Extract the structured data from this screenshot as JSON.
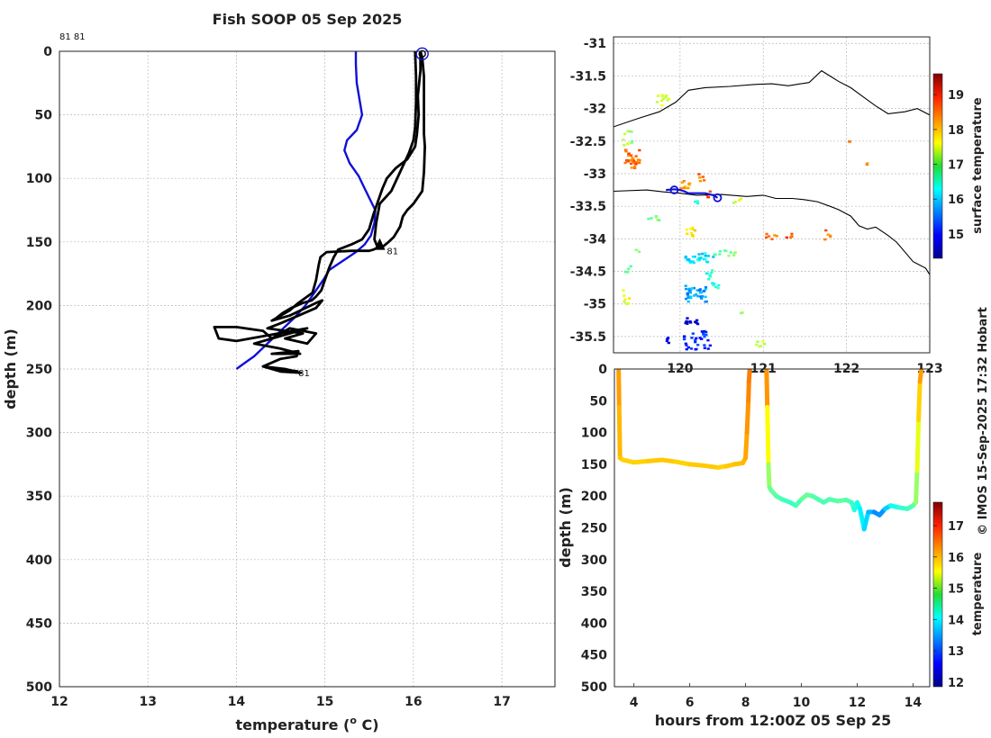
{
  "title": "Fish SOOP 05 Sep 2025",
  "credit": "© IMOS 15-Sep-2025 17:32 Hobart",
  "chart_data": [
    {
      "type": "line",
      "panel": "profile",
      "xlabel": "temperature (o C)",
      "xlabel_parts": {
        "pre": "temperature (",
        "sup": "o",
        "post": " C)"
      },
      "ylabel": "depth (m)",
      "xlim": [
        12,
        17.6
      ],
      "ylim": [
        500,
        0
      ],
      "xticks": [
        12,
        13,
        14,
        15,
        16,
        17
      ],
      "yticks": [
        0,
        50,
        100,
        150,
        200,
        250,
        300,
        350,
        400,
        450,
        500
      ],
      "grid": true,
      "annotations": [
        {
          "text": "81 81",
          "t": 12.0,
          "d": -12
        },
        {
          "text": "81",
          "t": 15.7,
          "d": 157
        },
        {
          "text": "81",
          "t": 14.7,
          "d": 253
        }
      ],
      "series": [
        {
          "color": "#1010d8",
          "x": [
            15.35,
            15.35,
            15.36,
            15.42,
            15.36,
            15.25,
            15.22,
            15.28,
            15.38,
            15.45,
            15.52,
            15.57,
            15.56,
            15.52,
            15.45,
            15.35,
            15.2,
            15.05,
            14.98,
            14.88,
            14.78,
            14.65,
            14.5,
            14.35,
            14.2,
            14.1,
            14.0
          ],
          "y": [
            0,
            10,
            25,
            50,
            62,
            70,
            78,
            88,
            98,
            108,
            118,
            125,
            135,
            145,
            152,
            158,
            165,
            172,
            180,
            190,
            200,
            210,
            220,
            230,
            240,
            245,
            250
          ]
        },
        {
          "color": "#000000",
          "x": [
            16.08,
            16.1,
            16.12,
            16.12,
            16.12,
            16.12,
            16.13,
            16.12,
            16.1,
            16.0,
            15.93,
            15.88,
            15.85,
            15.78,
            15.72,
            15.65,
            15.58,
            15.55,
            15.5,
            15.45,
            15.3,
            15.02,
            14.95,
            14.93,
            14.9,
            14.86,
            14.7,
            14.6,
            14.5,
            14.4,
            14.6,
            14.9,
            14.97,
            14.9,
            14.7,
            14.5,
            14.35,
            14.55,
            14.75,
            14.55,
            14.8,
            14.9,
            14.6,
            14.5,
            14.4,
            14.3,
            14.0,
            13.75,
            13.8,
            14.0,
            14.8,
            14.6,
            14.2,
            14.5,
            14.72,
            14.4,
            14.7,
            14.68,
            14.5,
            14.3,
            14.5,
            14.73,
            14.55,
            14.3,
            14.7
          ],
          "y": [
            0,
            5,
            20,
            40,
            55,
            65,
            75,
            95,
            110,
            120,
            125,
            130,
            138,
            146,
            150,
            154,
            155,
            156,
            157,
            157,
            157,
            158,
            162,
            168,
            180,
            190,
            198,
            204,
            208,
            212,
            208,
            198,
            196,
            202,
            208,
            214,
            218,
            220,
            222,
            226,
            230,
            222,
            218,
            222,
            226,
            220,
            217,
            217,
            226,
            228,
            218,
            222,
            230,
            234,
            238,
            238,
            236,
            240,
            242,
            248,
            252,
            253,
            250,
            248,
            252
          ]
        },
        {
          "color": "#000000",
          "x": [
            16.02,
            16.03,
            16.03,
            16.02,
            16.0,
            15.95,
            15.85,
            15.75,
            15.62,
            15.58,
            15.56,
            15.6
          ],
          "y": [
            0,
            20,
            40,
            60,
            70,
            80,
            95,
            110,
            120,
            135,
            148,
            155
          ]
        },
        {
          "color": "#000000",
          "x": [
            16.08,
            16.08,
            16.05,
            16.06,
            16.04,
            16.02,
            15.93,
            15.8,
            15.7,
            15.65,
            15.6,
            15.55,
            15.5,
            15.42,
            15.3,
            15.15,
            15.1,
            15.05,
            15.0,
            14.96,
            14.9,
            14.85,
            14.75,
            14.62,
            14.52,
            14.45
          ],
          "y": [
            0,
            15,
            35,
            50,
            65,
            75,
            85,
            92,
            100,
            108,
            118,
            128,
            140,
            148,
            152,
            156,
            162,
            170,
            180,
            188,
            193,
            196,
            198,
            202,
            206,
            210
          ]
        }
      ],
      "markers": [
        {
          "t": 16.1,
          "d": 2,
          "kind": "circle",
          "color": "#1010d8"
        },
        {
          "t": 16.1,
          "d": 2,
          "kind": "circle-small",
          "color": "#000000"
        },
        {
          "t": 15.62,
          "d": 152,
          "kind": "triangle",
          "color": "#000000"
        }
      ]
    },
    {
      "type": "heatmap",
      "panel": "map",
      "xlim": [
        119.2,
        123
      ],
      "ylim": [
        -35.75,
        -30.9
      ],
      "xticks": [
        120,
        121,
        122,
        123
      ],
      "yticks": [
        -31,
        -31.5,
        -32,
        -32.5,
        -33,
        -33.5,
        -34,
        -34.5,
        -35,
        -35.5
      ],
      "grid": true,
      "colorbar": {
        "label": "surface temperature",
        "min": 14.3,
        "max": 19.6,
        "ticks": [
          15,
          16,
          17,
          18,
          19
        ]
      },
      "coastline": {
        "lon": [
          119.2,
          119.5,
          119.75,
          119.95,
          120.1,
          120.3,
          120.6,
          120.9,
          121.1,
          121.3,
          121.45,
          121.55,
          121.7,
          121.8,
          121.9,
          122.05,
          122.2,
          122.35,
          122.5,
          122.7,
          122.85,
          123.0
        ],
        "lat": [
          -32.28,
          -32.15,
          -32.05,
          -31.9,
          -31.72,
          -31.68,
          -31.66,
          -31.63,
          -31.62,
          -31.65,
          -31.62,
          -31.6,
          -31.42,
          -31.5,
          -31.58,
          -31.68,
          -31.82,
          -31.96,
          -32.08,
          -32.05,
          -32.0,
          -32.1
        ]
      },
      "shelf": {
        "lon": [
          119.2,
          119.6,
          119.8,
          120.0,
          120.2,
          120.5,
          120.8,
          121.0,
          121.15,
          121.35,
          121.5,
          121.65,
          121.8,
          121.9,
          122.05,
          122.15,
          122.25,
          122.35,
          122.5,
          122.6,
          122.7,
          122.8,
          122.95,
          123.0
        ],
        "lat": [
          -33.27,
          -33.25,
          -33.28,
          -33.3,
          -33.33,
          -33.32,
          -33.35,
          -33.33,
          -33.38,
          -33.38,
          -33.4,
          -33.43,
          -33.5,
          -33.55,
          -33.65,
          -33.8,
          -33.85,
          -33.82,
          -33.95,
          -34.05,
          -34.2,
          -34.35,
          -34.45,
          -34.55
        ]
      },
      "track": {
        "lon": [
          119.83,
          119.93,
          120.0,
          120.05,
          120.1,
          120.3,
          120.4,
          120.45
        ],
        "lat": [
          -33.25,
          -33.24,
          -33.25,
          -33.27,
          -33.3,
          -33.3,
          -33.33,
          -33.37
        ]
      },
      "track_markers": [
        {
          "lon": 119.93,
          "lat": -33.25
        },
        {
          "lon": 120.45,
          "lat": -33.37
        }
      ],
      "patches": [
        {
          "lon": 119.32,
          "lat": -32.92,
          "w": 0.18,
          "h": 0.32,
          "v": 18.4,
          "count": 30
        },
        {
          "lon": 119.3,
          "lat": -32.55,
          "w": 0.12,
          "h": 0.25,
          "v": 17.2,
          "count": 10
        },
        {
          "lon": 119.3,
          "lat": -35.0,
          "w": 0.1,
          "h": 0.3,
          "v": 17.5,
          "count": 8
        },
        {
          "lon": 119.32,
          "lat": -34.5,
          "w": 0.1,
          "h": 0.15,
          "v": 16.8,
          "count": 5
        },
        {
          "lon": 119.7,
          "lat": -31.95,
          "w": 0.15,
          "h": 0.18,
          "v": 17.3,
          "count": 12
        },
        {
          "lon": 119.98,
          "lat": -33.23,
          "w": 0.12,
          "h": 0.15,
          "v": 18.2,
          "count": 10
        },
        {
          "lon": 120.2,
          "lat": -33.1,
          "w": 0.08,
          "h": 0.15,
          "v": 18.4,
          "count": 6
        },
        {
          "lon": 120.3,
          "lat": -33.37,
          "w": 0.05,
          "h": 0.12,
          "v": 18.6,
          "count": 4
        },
        {
          "lon": 120.62,
          "lat": -33.45,
          "w": 0.1,
          "h": 0.1,
          "v": 17.4,
          "count": 4
        },
        {
          "lon": 121.0,
          "lat": -34.0,
          "w": 0.15,
          "h": 0.1,
          "v": 18.3,
          "count": 6
        },
        {
          "lon": 121.25,
          "lat": -34.0,
          "w": 0.1,
          "h": 0.1,
          "v": 18.5,
          "count": 4
        },
        {
          "lon": 121.7,
          "lat": -34.0,
          "w": 0.1,
          "h": 0.15,
          "v": 18.4,
          "count": 5
        },
        {
          "lon": 122.0,
          "lat": -32.5,
          "w": 0.05,
          "h": 0.05,
          "v": 18.3,
          "count": 2
        },
        {
          "lon": 122.2,
          "lat": -32.85,
          "w": 0.05,
          "h": 0.05,
          "v": 18.4,
          "count": 2
        },
        {
          "lon": 120.05,
          "lat": -34.35,
          "w": 0.35,
          "h": 0.15,
          "v": 16.2,
          "count": 28
        },
        {
          "lon": 120.05,
          "lat": -34.95,
          "w": 0.25,
          "h": 0.25,
          "v": 15.8,
          "count": 36
        },
        {
          "lon": 120.0,
          "lat": -35.7,
          "w": 0.35,
          "h": 0.3,
          "v": 15.2,
          "count": 30
        },
        {
          "lon": 120.05,
          "lat": -35.3,
          "w": 0.15,
          "h": 0.12,
          "v": 14.7,
          "count": 12
        },
        {
          "lon": 119.8,
          "lat": -35.6,
          "w": 0.05,
          "h": 0.12,
          "v": 14.8,
          "count": 4
        },
        {
          "lon": 120.05,
          "lat": -33.95,
          "w": 0.12,
          "h": 0.15,
          "v": 17.7,
          "count": 10
        },
        {
          "lon": 120.3,
          "lat": -34.75,
          "w": 0.15,
          "h": 0.3,
          "v": 16.5,
          "count": 14
        },
        {
          "lon": 120.4,
          "lat": -34.25,
          "w": 0.25,
          "h": 0.12,
          "v": 16.9,
          "count": 10
        },
        {
          "lon": 120.7,
          "lat": -35.15,
          "w": 0.05,
          "h": 0.05,
          "v": 17.1,
          "count": 2
        },
        {
          "lon": 120.9,
          "lat": -35.65,
          "w": 0.15,
          "h": 0.1,
          "v": 17.3,
          "count": 6
        },
        {
          "lon": 119.6,
          "lat": -33.75,
          "w": 0.15,
          "h": 0.12,
          "v": 17.0,
          "count": 6
        },
        {
          "lon": 119.45,
          "lat": -34.2,
          "w": 0.05,
          "h": 0.05,
          "v": 16.8,
          "count": 2
        },
        {
          "lon": 120.15,
          "lat": -33.45,
          "w": 0.1,
          "h": 0.05,
          "v": 16.5,
          "count": 3
        }
      ]
    },
    {
      "type": "scatter",
      "panel": "section",
      "xlabel": "hours from 12:00Z 05 Sep 25",
      "ylabel": "depth (m)",
      "xlim": [
        3.3,
        14.6
      ],
      "ylim": [
        500,
        0
      ],
      "xticks": [
        4,
        6,
        8,
        10,
        12,
        14
      ],
      "yticks": [
        0,
        50,
        100,
        150,
        200,
        250,
        300,
        350,
        400,
        450,
        500
      ],
      "colorbar": {
        "label": "temperature",
        "min": 11.85,
        "max": 17.75,
        "ticks": [
          12,
          13,
          14,
          15,
          16,
          17
        ]
      },
      "segments": [
        {
          "x": [
            3.45,
            3.47,
            3.5,
            3.6,
            4.0,
            4.5,
            5.0,
            5.5,
            6.0,
            6.5,
            7.0,
            7.3,
            7.6,
            7.9,
            8.0,
            8.05,
            8.1,
            8.12,
            8.15
          ],
          "y": [
            0,
            60,
            140,
            143,
            147,
            145,
            143,
            146,
            150,
            152,
            155,
            153,
            150,
            148,
            140,
            100,
            50,
            20,
            0
          ],
          "v": [
            16.2,
            16.0,
            15.9,
            15.8,
            15.8,
            15.8,
            15.9,
            15.8,
            15.8,
            15.9,
            15.8,
            15.8,
            15.9,
            15.9,
            16.0,
            16.1,
            16.2,
            16.3,
            16.3
          ]
        },
        {
          "x": [
            8.75,
            8.78,
            8.82,
            8.85,
            8.9,
            9.1,
            9.3,
            9.6,
            9.8,
            10.0,
            10.2,
            10.4,
            10.6,
            10.8,
            11.0,
            11.3,
            11.6,
            11.8,
            11.9,
            12.0,
            12.1,
            12.25,
            12.4,
            12.6,
            12.8,
            13.0,
            13.2,
            13.5,
            13.8,
            14.0,
            14.1,
            14.15,
            14.2,
            14.25,
            14.3
          ],
          "y": [
            0,
            60,
            150,
            185,
            190,
            200,
            205,
            210,
            215,
            205,
            198,
            200,
            205,
            210,
            205,
            208,
            206,
            210,
            222,
            210,
            220,
            252,
            225,
            225,
            230,
            220,
            215,
            218,
            220,
            215,
            210,
            160,
            80,
            20,
            0
          ],
          "v": [
            16.3,
            16.0,
            15.1,
            14.8,
            14.7,
            14.6,
            14.5,
            14.4,
            14.4,
            14.6,
            14.7,
            14.6,
            14.5,
            14.5,
            14.5,
            14.6,
            14.6,
            14.5,
            14.3,
            14.2,
            14.1,
            13.9,
            13.8,
            13.5,
            13.3,
            13.6,
            14.0,
            14.3,
            14.4,
            14.5,
            14.7,
            15.2,
            15.6,
            16.0,
            16.2
          ]
        }
      ]
    }
  ]
}
